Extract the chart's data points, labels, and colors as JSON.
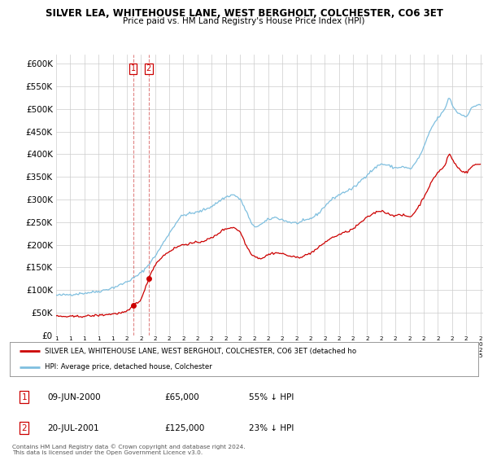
{
  "title": "SILVER LEA, WHITEHOUSE LANE, WEST BERGHOLT, COLCHESTER, CO6 3ET",
  "subtitle": "Price paid vs. HM Land Registry's House Price Index (HPI)",
  "hpi_color": "#7fbfdf",
  "price_color": "#cc0000",
  "vline_color": "#cc3333",
  "background_color": "#ffffff",
  "grid_color": "#cccccc",
  "ylim": [
    0,
    620000
  ],
  "yticks": [
    0,
    50000,
    100000,
    150000,
    200000,
    250000,
    300000,
    350000,
    400000,
    450000,
    500000,
    550000,
    600000
  ],
  "legend_label_red": "SILVER LEA, WHITEHOUSE LANE, WEST BERGHOLT, COLCHESTER, CO6 3ET (detached ho",
  "legend_label_blue": "HPI: Average price, detached house, Colchester",
  "footnote": "Contains HM Land Registry data © Crown copyright and database right 2024.\nThis data is licensed under the Open Government Licence v3.0.",
  "transactions": [
    {
      "num": 1,
      "date": "09-JUN-2000",
      "price": 65000,
      "hpi_diff": "55% ↓ HPI",
      "x_year": 2000.44
    },
    {
      "num": 2,
      "date": "20-JUL-2001",
      "price": 125000,
      "hpi_diff": "23% ↓ HPI",
      "x_year": 2001.55
    }
  ],
  "xlim_left": 1995.0,
  "xlim_right": 2025.2
}
